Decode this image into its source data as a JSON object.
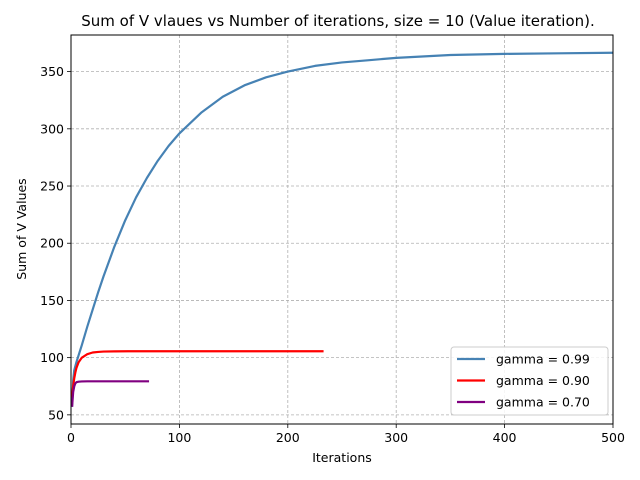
{
  "chart_data": {
    "type": "line",
    "title": "Sum of V vlaues vs Number of iterations, size = 10 (Value iteration).",
    "xlabel": "Iterations",
    "ylabel": "Sum of V Values",
    "xlim": [
      0,
      500
    ],
    "ylim": [
      42,
      382
    ],
    "xticks": [
      0,
      100,
      200,
      300,
      400,
      500
    ],
    "yticks": [
      50,
      100,
      150,
      200,
      250,
      300,
      350
    ],
    "grid": true,
    "legend_position": "lower-right",
    "series": [
      {
        "name": "gamma = 0.99",
        "color": "#4682b4",
        "x": [
          1,
          2,
          3,
          5,
          7,
          10,
          15,
          20,
          25,
          30,
          40,
          50,
          60,
          70,
          80,
          90,
          100,
          120,
          140,
          160,
          180,
          200,
          225,
          250,
          275,
          300,
          350,
          400,
          450,
          500
        ],
        "y": [
          57,
          80,
          89,
          96,
          102,
          111,
          127,
          142,
          157,
          171,
          197,
          220,
          240,
          257,
          272,
          285,
          296,
          314,
          328,
          338,
          345,
          350,
          355,
          358,
          360,
          362,
          364.5,
          365.5,
          366,
          366.5
        ]
      },
      {
        "name": "gamma = 0.90",
        "color": "#ff0000",
        "x": [
          1,
          2,
          3,
          4,
          5,
          7,
          10,
          15,
          20,
          25,
          30,
          40,
          60,
          100,
          150,
          200,
          233
        ],
        "y": [
          65,
          75,
          82,
          87,
          91,
          96,
          100,
          103,
          104.5,
          105,
          105.3,
          105.5,
          105.6,
          105.6,
          105.6,
          105.6,
          105.6
        ]
      },
      {
        "name": "gamma = 0.70",
        "color": "#800080",
        "x": [
          1,
          2,
          3,
          4,
          5,
          7,
          10,
          15,
          20,
          30,
          40,
          50,
          60,
          72
        ],
        "y": [
          57,
          70,
          75,
          77.5,
          78.5,
          79,
          79.2,
          79.3,
          79.3,
          79.3,
          79.3,
          79.3,
          79.3,
          79.3
        ]
      }
    ]
  }
}
